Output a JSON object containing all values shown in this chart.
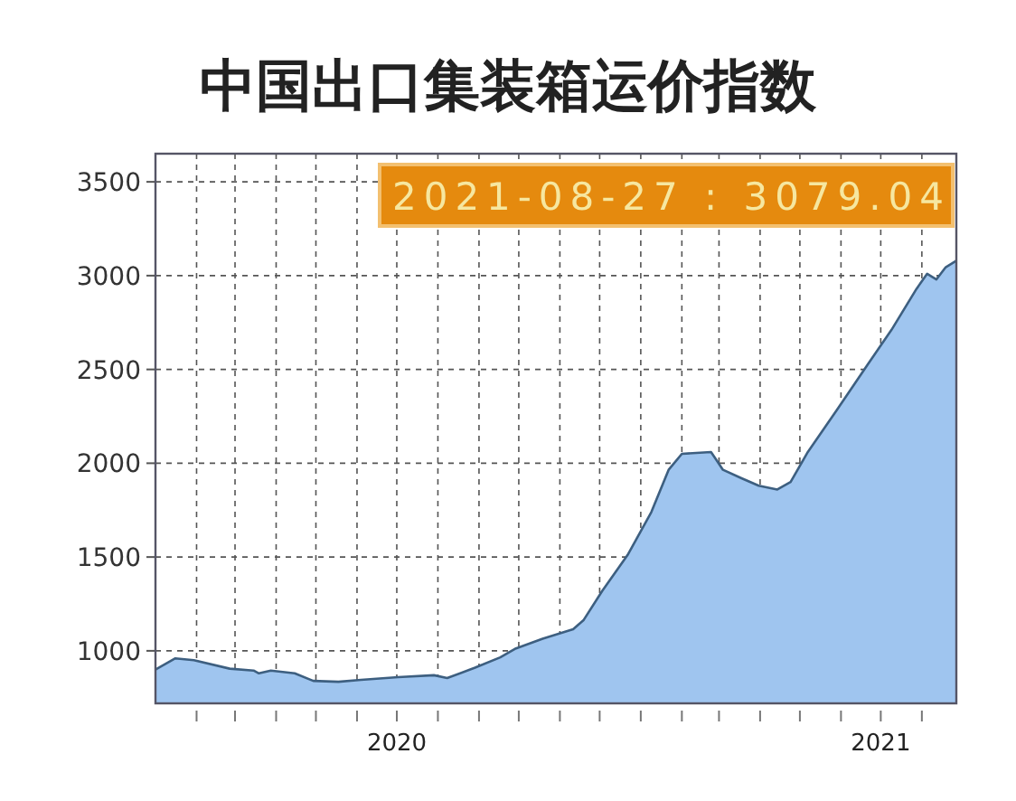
{
  "chart_data": {
    "type": "area",
    "title": "中国出口集装箱运价指数",
    "annotations": [
      "2021-08-27 : 3079.04"
    ],
    "x": [
      "2020-01-01",
      "2020-01-16",
      "2020-01-30",
      "2020-02-26",
      "2020-03-15",
      "2020-03-19",
      "2020-03-28",
      "2020-04-15",
      "2020-04-29",
      "2020-05-18",
      "2020-06-04",
      "2020-07-02",
      "2020-07-29",
      "2020-08-08",
      "2020-08-29",
      "2020-09-17",
      "2020-09-28",
      "2020-10-19",
      "2020-11-11",
      "2020-11-19",
      "2020-12-03",
      "2020-12-22",
      "2021-01-09",
      "2021-01-22",
      "2021-02-01",
      "2021-02-23",
      "2021-03-04",
      "2021-03-18",
      "2021-03-31",
      "2021-04-14",
      "2021-04-24",
      "2021-05-07",
      "2021-05-29",
      "2021-06-21",
      "2021-07-09",
      "2021-07-28",
      "2021-08-05",
      "2021-08-12",
      "2021-08-19",
      "2021-08-27"
    ],
    "series": [
      {
        "color": "#9fc5ef",
        "values": [
          900,
          960,
          950,
          905,
          895,
          880,
          895,
          880,
          840,
          835,
          845,
          860,
          870,
          855,
          910,
          965,
          1010,
          1065,
          1115,
          1165,
          1320,
          1510,
          1740,
          1965,
          2050,
          2060,
          1965,
          1920,
          1880,
          1860,
          1900,
          2060,
          2285,
          2525,
          2710,
          2930,
          3010,
          2980,
          3045,
          3079.04
        ]
      }
    ],
    "xlim": [
      "2020-01-01",
      "2021-08-27"
    ],
    "xticks": [
      {
        "value": "2020-02-01",
        "label": null
      },
      {
        "value": "2020-03-01",
        "label": null
      },
      {
        "value": "2020-04-01",
        "label": null
      },
      {
        "value": "2020-05-01",
        "label": null
      },
      {
        "value": "2020-06-01",
        "label": null
      },
      {
        "value": "2020-07-01",
        "label": "2020"
      },
      {
        "value": "2020-08-01",
        "label": null
      },
      {
        "value": "2020-09-01",
        "label": null
      },
      {
        "value": "2020-10-01",
        "label": null
      },
      {
        "value": "2020-11-01",
        "label": null
      },
      {
        "value": "2020-12-01",
        "label": null
      },
      {
        "value": "2021-01-01",
        "label": null
      },
      {
        "value": "2021-02-01",
        "label": null
      },
      {
        "value": "2021-03-01",
        "label": null
      },
      {
        "value": "2021-04-01",
        "label": null
      },
      {
        "value": "2021-05-01",
        "label": null
      },
      {
        "value": "2021-06-01",
        "label": null
      },
      {
        "value": "2021-07-01",
        "label": "2021"
      },
      {
        "value": "2021-08-01",
        "label": null
      }
    ],
    "ylim": [
      720,
      3650
    ],
    "yticks": [
      1000,
      1500,
      2000,
      2500,
      3000,
      3500
    ],
    "grid": true
  }
}
